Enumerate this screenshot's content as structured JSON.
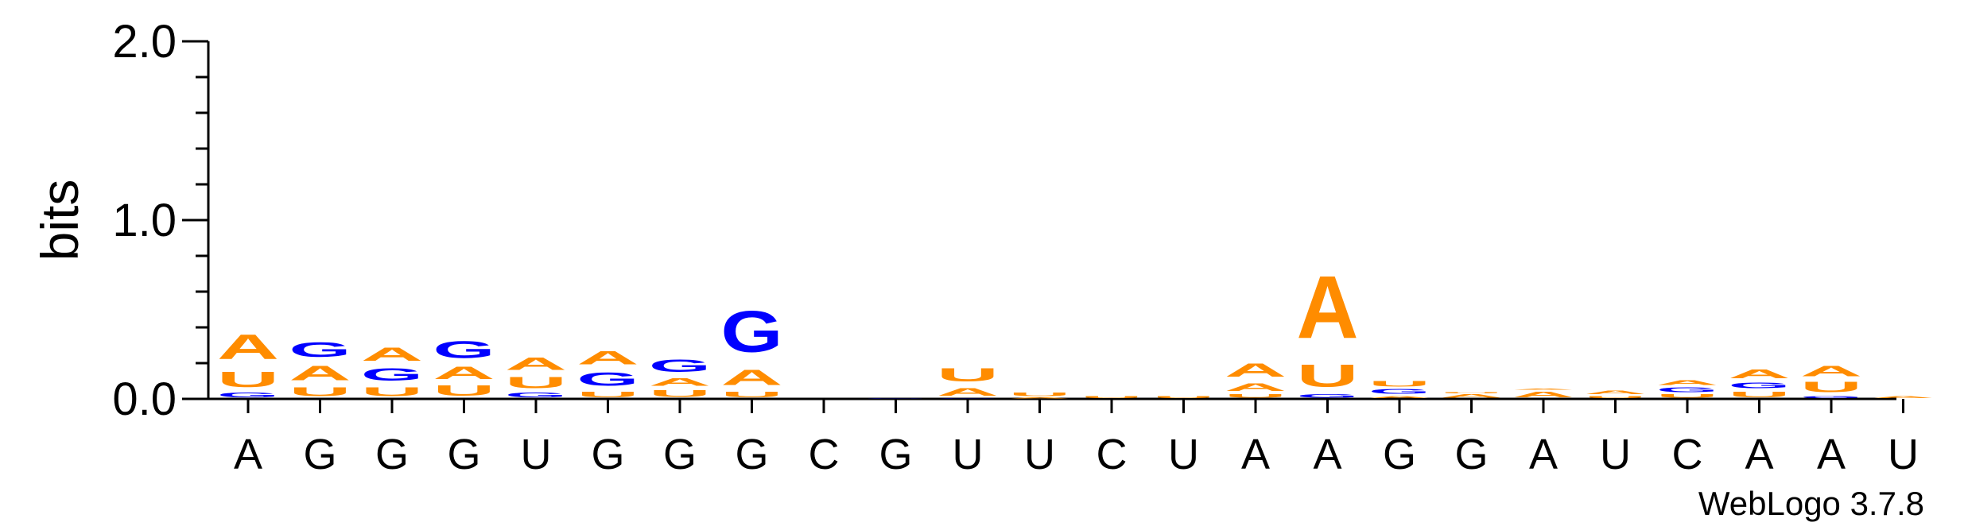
{
  "chart_data": {
    "type": "sequence-logo",
    "ylabel": "bits",
    "ylim": [
      0,
      2.0
    ],
    "yticks": [
      "0.0",
      "1.0",
      "2.0"
    ],
    "footer": "WebLogo 3.7.8",
    "colors": {
      "A": "#FF8C00",
      "U": "#FF8C00",
      "G": "#0000FF",
      "C": "#0000FF"
    },
    "positions": [
      {
        "label": "A",
        "letters": [
          [
            "G",
            0.04
          ],
          [
            "U",
            0.14
          ],
          [
            "A",
            0.22
          ]
        ]
      },
      {
        "label": "G",
        "letters": [
          [
            "U",
            0.08
          ],
          [
            "A",
            0.13
          ],
          [
            "G",
            0.13
          ]
        ]
      },
      {
        "label": "G",
        "letters": [
          [
            "U",
            0.08
          ],
          [
            "G",
            0.11
          ],
          [
            "A",
            0.12
          ]
        ]
      },
      {
        "label": "G",
        "letters": [
          [
            "U",
            0.09
          ],
          [
            "A",
            0.11
          ],
          [
            "G",
            0.15
          ]
        ]
      },
      {
        "label": "U",
        "letters": [
          [
            "G",
            0.04
          ],
          [
            "U",
            0.1
          ],
          [
            "A",
            0.11
          ]
        ]
      },
      {
        "label": "G",
        "letters": [
          [
            "U",
            0.05
          ],
          [
            "G",
            0.12
          ],
          [
            "A",
            0.12
          ]
        ]
      },
      {
        "label": "G",
        "letters": [
          [
            "U",
            0.06
          ],
          [
            "A",
            0.07
          ],
          [
            "G",
            0.11
          ]
        ]
      },
      {
        "label": "G",
        "letters": [
          [
            "U",
            0.05
          ],
          [
            "A",
            0.14
          ],
          [
            "G",
            0.37
          ]
        ]
      },
      {
        "label": "C",
        "letters": []
      },
      {
        "label": "G",
        "letters": [
          [
            "G",
            0.005
          ]
        ]
      },
      {
        "label": "U",
        "letters": [
          [
            "G",
            0.005
          ],
          [
            "A",
            0.07
          ],
          [
            "U",
            0.12
          ]
        ]
      },
      {
        "label": "U",
        "letters": [
          [
            "A",
            0.01
          ],
          [
            "U",
            0.03
          ]
        ]
      },
      {
        "label": "C",
        "letters": [
          [
            "U",
            0.02
          ]
        ]
      },
      {
        "label": "U",
        "letters": [
          [
            "U",
            0.02
          ]
        ]
      },
      {
        "label": "A",
        "letters": [
          [
            "U",
            0.03
          ],
          [
            "A",
            0.07
          ],
          [
            "A",
            0.12
          ]
        ]
      },
      {
        "label": "A",
        "letters": [
          [
            "G",
            0.03
          ],
          [
            "U",
            0.2
          ],
          [
            "A",
            0.56
          ]
        ]
      },
      {
        "label": "G",
        "letters": [
          [
            "A",
            0.02
          ],
          [
            "G",
            0.04
          ],
          [
            "U",
            0.05
          ]
        ]
      },
      {
        "label": "G",
        "letters": [
          [
            "A",
            0.03
          ],
          [
            "U",
            0.01
          ]
        ]
      },
      {
        "label": "A",
        "letters": [
          [
            "A",
            0.05
          ],
          [
            "A",
            0.01
          ]
        ]
      },
      {
        "label": "U",
        "letters": [
          [
            "U",
            0.02
          ],
          [
            "A",
            0.03
          ]
        ]
      },
      {
        "label": "C",
        "letters": [
          [
            "U",
            0.03
          ],
          [
            "G",
            0.04
          ],
          [
            "A",
            0.04
          ]
        ]
      },
      {
        "label": "A",
        "letters": [
          [
            "U",
            0.05
          ],
          [
            "G",
            0.05
          ],
          [
            "A",
            0.08
          ]
        ]
      },
      {
        "label": "A",
        "letters": [
          [
            "G",
            0.02
          ],
          [
            "U",
            0.09
          ],
          [
            "A",
            0.09
          ]
        ]
      },
      {
        "label": "U",
        "letters": [
          [
            "A",
            0.02
          ]
        ]
      }
    ]
  }
}
